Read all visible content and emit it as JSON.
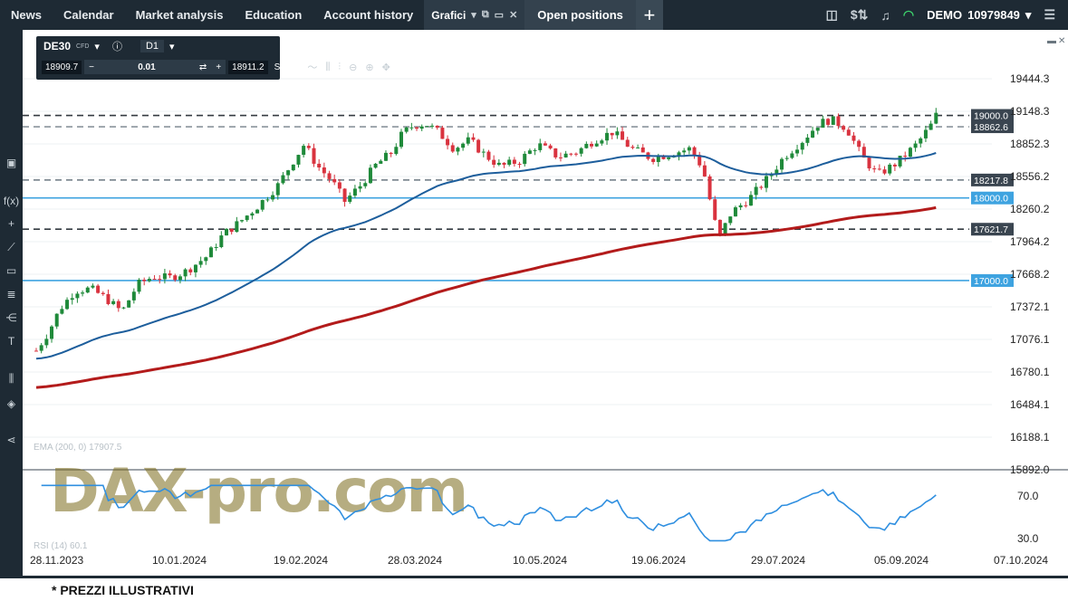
{
  "topbar": {
    "tabs": [
      "News",
      "Calendar",
      "Market analysis",
      "Education",
      "Account history"
    ],
    "charts_tab": "Grafici",
    "open_positions": "Open positions",
    "account_mode": "DEMO",
    "account_number": "10979849"
  },
  "toolbox": {
    "symbol": "DE30",
    "instrument_type": "CFD",
    "timeframe": "D1",
    "sell_price": "18909.7",
    "quantity": "0.01",
    "buy_price": "18911.2",
    "sltp_label": "SL/TP"
  },
  "chart": {
    "price_ticks": [
      "19444.3",
      "19148.3",
      "18852.3",
      "18556.2",
      "18260.2",
      "17964.2",
      "17668.2",
      "17372.1",
      "17076.1",
      "16780.1",
      "16484.1",
      "16188.1",
      "15892.0"
    ],
    "rsi_ticks": [
      "70.0",
      "30.0"
    ],
    "date_ticks": [
      "28.11.2023",
      "10.01.2024",
      "19.02.2024",
      "28.03.2024",
      "10.05.2024",
      "19.06.2024",
      "29.07.2024",
      "05.09.2024",
      "07.10.2024"
    ],
    "level_labels": {
      "l19000": "19000.0",
      "l18862": "18862.6",
      "l18217": "18217.8",
      "l18000": "18000.0",
      "l17621": "17621.7",
      "l17000": "17000.0"
    },
    "ema_legend": "EMA (200, 0) 17907.5",
    "rsi_legend": "RSI (14) 60.1",
    "watermark": "DAX-pro.com",
    "colors": {
      "bull": "#1f8a3a",
      "bear": "#d9333f",
      "ema_fast": "#1d5e9c",
      "ema_slow": "#b31b1b",
      "rsi": "#2f8fe0",
      "level_blue": "#3ea3e0",
      "level_dark": "#333a40"
    }
  },
  "footer": {
    "note": "* PREZZI ILLUSTRATIVI"
  }
}
